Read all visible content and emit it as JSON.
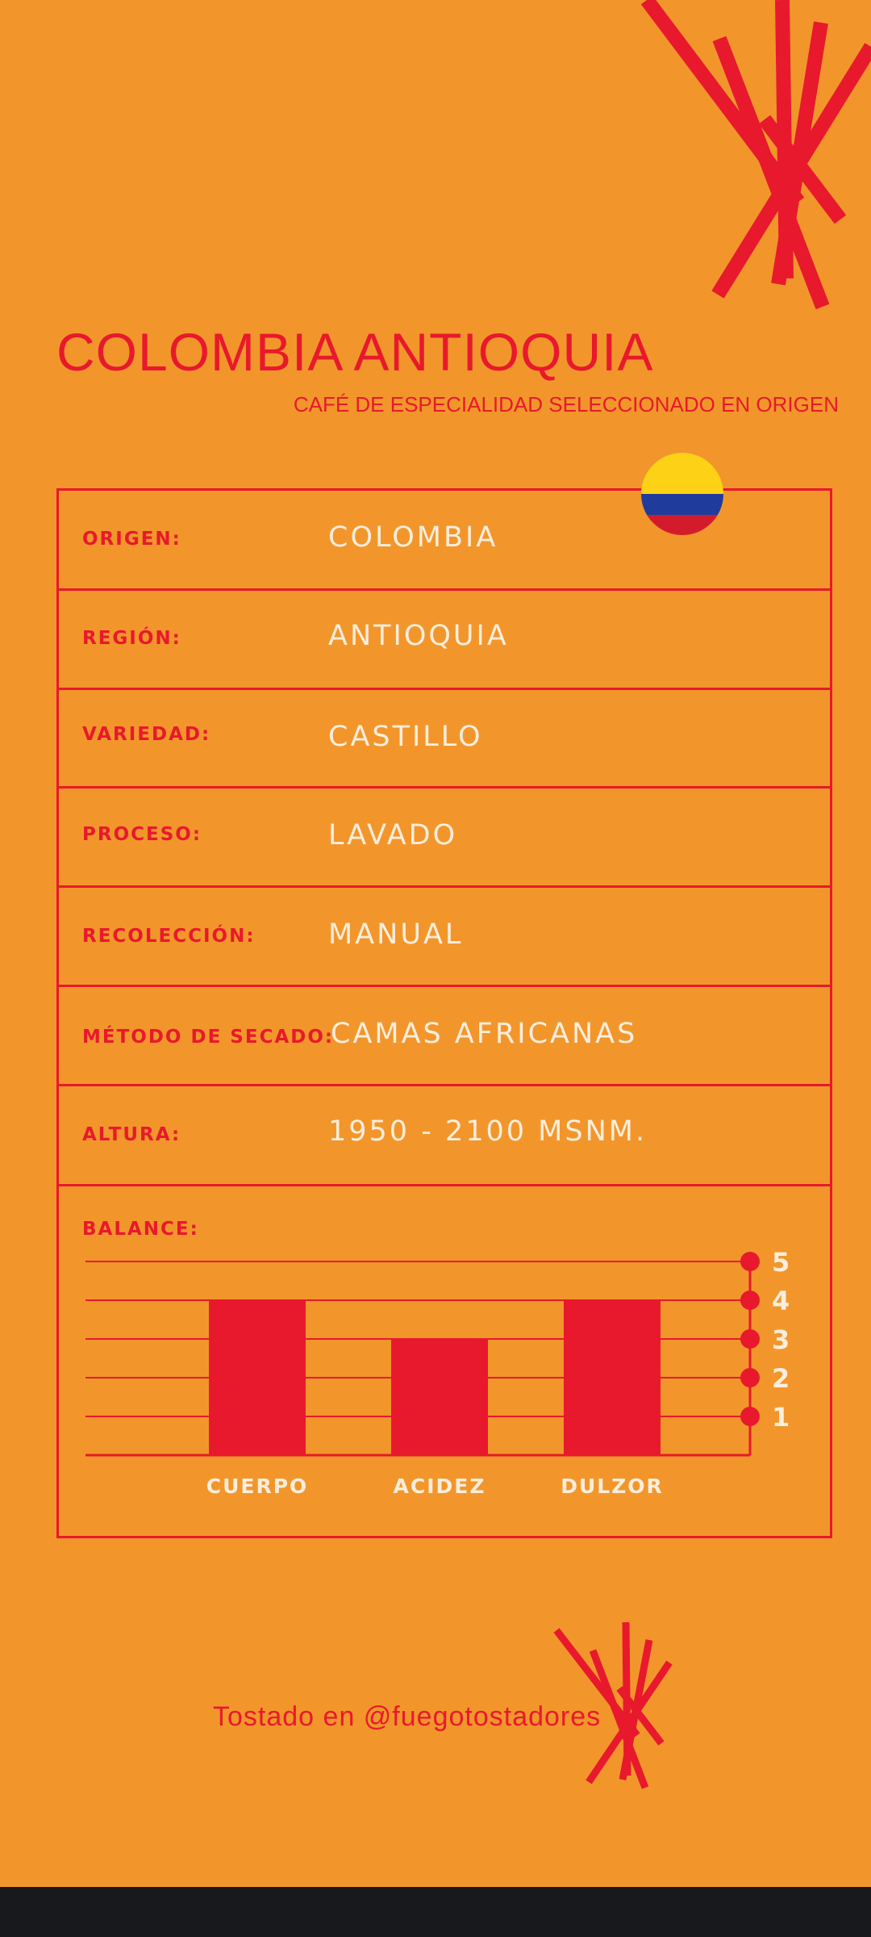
{
  "header": {
    "title": "COLOMBIA ANTIOQUIA",
    "subtitle": "CAFÉ DE ESPECIALIDAD SELECCIONADO EN ORIGEN"
  },
  "details": [
    {
      "label": "ORIGEN:",
      "value": "COLOMBIA"
    },
    {
      "label": "REGIÓN:",
      "value": "ANTIOQUIA"
    },
    {
      "label": "VARIEDAD:",
      "value": "CASTILLO"
    },
    {
      "label": "PROCESO:",
      "value": "LAVADO"
    },
    {
      "label": "RECOLECCIÓN:",
      "value": "MANUAL"
    },
    {
      "label": "MÉTODO DE SECADO:",
      "value": "CAMAS AFRICANAS"
    },
    {
      "label": "ALTURA:",
      "value": "1950 - 2100 MSNM."
    }
  ],
  "balance": {
    "label": "BALANCE:"
  },
  "chart_data": {
    "type": "bar",
    "categories": [
      "CUERPO",
      "ACIDEZ",
      "DULZOR"
    ],
    "values": [
      4,
      3,
      4
    ],
    "ylim": [
      0,
      5
    ],
    "yticks": [
      "1",
      "2",
      "3",
      "4",
      "5"
    ],
    "grid": true
  },
  "footer": {
    "text": "Tostado en @fuegotostadores"
  },
  "colors": {
    "background": "#F2962C",
    "accent": "#E8192C",
    "light_text": "#FBEEDC",
    "navbar": "#17191D"
  },
  "icons": {
    "flag": "colombia-flag-icon",
    "logo": "fuego-logo-icon"
  }
}
